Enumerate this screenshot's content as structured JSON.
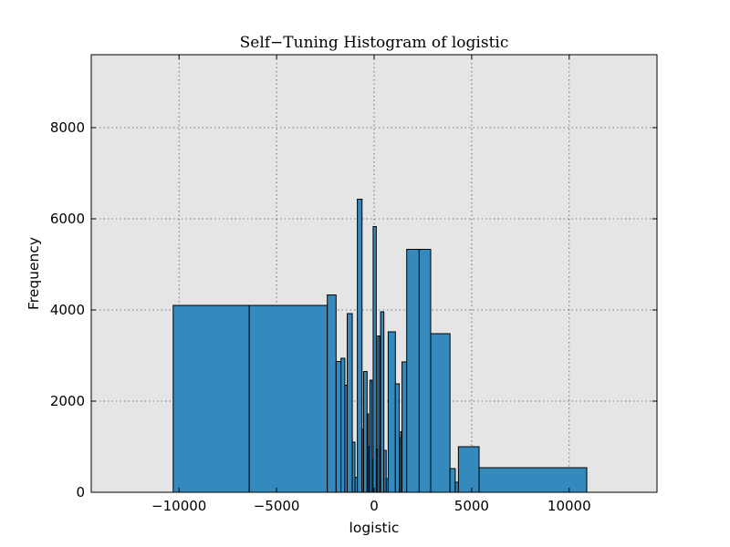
{
  "chart_data": {
    "type": "bar",
    "title": "Self−Tuning Histogram of logistic",
    "xlabel": "logistic",
    "ylabel": "Frequency",
    "xlim": [
      -14500,
      14500
    ],
    "ylim": [
      0,
      9600
    ],
    "xticks": [
      -10000,
      -5000,
      0,
      5000,
      10000
    ],
    "xtick_labels": [
      "−10000",
      "−5000",
      "0",
      "5000",
      "10000"
    ],
    "yticks": [
      0,
      2000,
      4000,
      6000,
      8000
    ],
    "ytick_labels": [
      "0",
      "2000",
      "4000",
      "6000",
      "8000"
    ],
    "grid": true,
    "bar_color": "#348ABD",
    "edge_color": "#000000",
    "background_color": "#E5E5E5",
    "bins": [
      {
        "x0": -10300,
        "x1": -6400,
        "count": 4100
      },
      {
        "x0": -6400,
        "x1": -2400,
        "count": 4100
      },
      {
        "x0": -2400,
        "x1": -1950,
        "count": 4330
      },
      {
        "x0": -1950,
        "x1": -1700,
        "count": 2870
      },
      {
        "x0": -1700,
        "x1": -1500,
        "count": 2940
      },
      {
        "x0": -1500,
        "x1": -1380,
        "count": 2350
      },
      {
        "x0": -1380,
        "x1": -1120,
        "count": 3920
      },
      {
        "x0": -1120,
        "x1": -980,
        "count": 1100
      },
      {
        "x0": -980,
        "x1": -860,
        "count": 330
      },
      {
        "x0": -860,
        "x1": -620,
        "count": 6430
      },
      {
        "x0": -620,
        "x1": -540,
        "count": 1380
      },
      {
        "x0": -540,
        "x1": -360,
        "count": 2650
      },
      {
        "x0": -360,
        "x1": -290,
        "count": 1720
      },
      {
        "x0": -290,
        "x1": -220,
        "count": 1000
      },
      {
        "x0": -220,
        "x1": -110,
        "count": 2460
      },
      {
        "x0": -110,
        "x1": -50,
        "count": 720
      },
      {
        "x0": -50,
        "x1": 110,
        "count": 5830
      },
      {
        "x0": 110,
        "x1": 180,
        "count": 950
      },
      {
        "x0": 180,
        "x1": 290,
        "count": 3430
      },
      {
        "x0": 290,
        "x1": 330,
        "count": 1050
      },
      {
        "x0": 330,
        "x1": 500,
        "count": 3960
      },
      {
        "x0": 500,
        "x1": 620,
        "count": 920
      },
      {
        "x0": 620,
        "x1": 720,
        "count": 300
      },
      {
        "x0": 720,
        "x1": 1090,
        "count": 3520
      },
      {
        "x0": 1090,
        "x1": 1290,
        "count": 2380
      },
      {
        "x0": 1290,
        "x1": 1360,
        "count": 1200
      },
      {
        "x0": 1360,
        "x1": 1430,
        "count": 1330
      },
      {
        "x0": 1430,
        "x1": 1670,
        "count": 2860
      },
      {
        "x0": 1670,
        "x1": 2310,
        "count": 5330
      },
      {
        "x0": 2310,
        "x1": 2900,
        "count": 5330
      },
      {
        "x0": 2900,
        "x1": 3890,
        "count": 3480
      },
      {
        "x0": 3890,
        "x1": 4160,
        "count": 520
      },
      {
        "x0": 4160,
        "x1": 4320,
        "count": 220
      },
      {
        "x0": 4320,
        "x1": 5380,
        "count": 1000
      },
      {
        "x0": 5380,
        "x1": 10900,
        "count": 540
      }
    ]
  }
}
